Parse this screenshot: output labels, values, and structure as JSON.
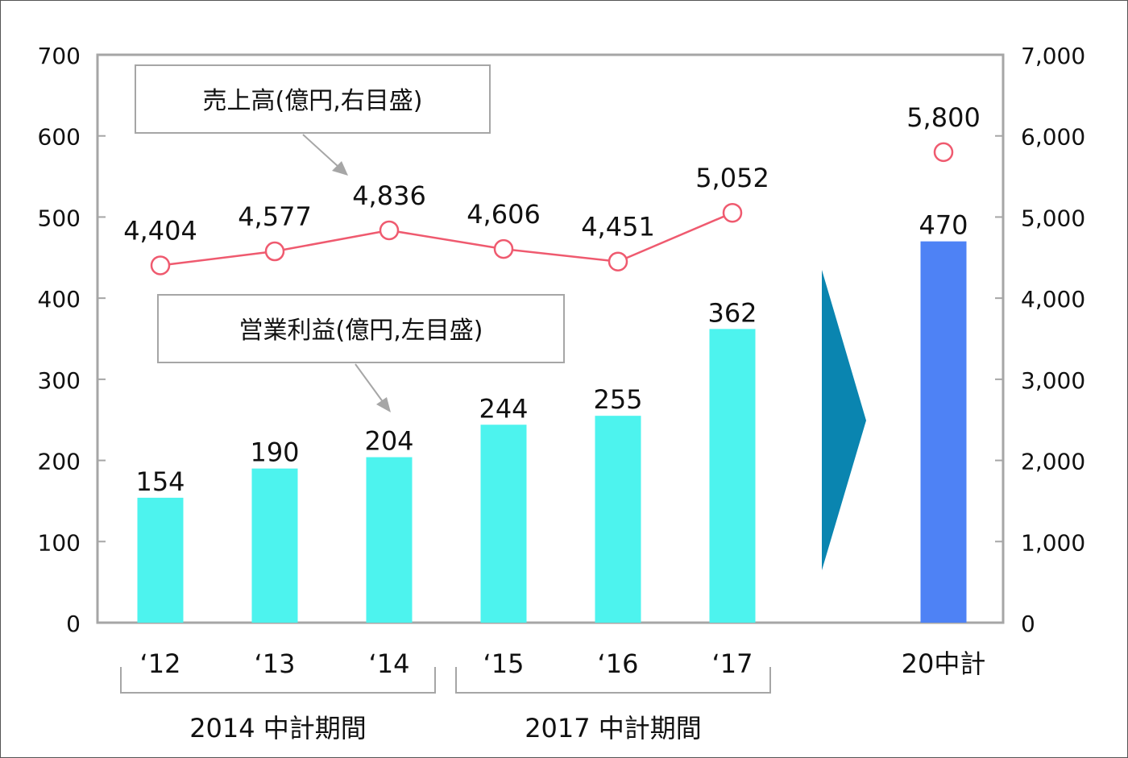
{
  "chart_data": {
    "type": "bar+line",
    "categories": [
      "‘12",
      "‘13",
      "‘14",
      "‘15",
      "‘16",
      "‘17",
      "20中計"
    ],
    "series": [
      {
        "name": "営業利益(億円,左目盛)",
        "axis": "left",
        "type": "bar",
        "values": [
          154,
          190,
          204,
          244,
          255,
          362,
          470
        ],
        "labels": [
          "154",
          "190",
          "204",
          "244",
          "255",
          "362",
          "470"
        ]
      },
      {
        "name": "売上高(億円,右目盛)",
        "axis": "right",
        "type": "line",
        "values": [
          4404,
          4577,
          4836,
          4606,
          4451,
          5052,
          5800
        ],
        "labels": [
          "4,404",
          "4,577",
          "4,836",
          "4,606",
          "4,451",
          "5,052",
          "5,800"
        ]
      }
    ],
    "left_axis": {
      "ylim": [
        0,
        700
      ],
      "ticks": [
        "0",
        "100",
        "200",
        "300",
        "400",
        "500",
        "600",
        "700"
      ]
    },
    "right_axis": {
      "ylim": [
        0,
        7000
      ],
      "ticks": [
        "0",
        "1,000",
        "2,000",
        "3,000",
        "4,000",
        "5,000",
        "6,000",
        "7,000"
      ]
    },
    "callouts": {
      "sales": "売上高(億円,右目盛)",
      "profit": "営業利益(億円,左目盛)"
    },
    "groups": [
      "2014 中計期間",
      "2017 中計期間"
    ],
    "colors": {
      "bar": "#4df3ee",
      "bar_target": "#4e82f5",
      "line": "#ef5a6f",
      "arrow": "#0a85b0",
      "axis": "#a6a6a6"
    }
  }
}
